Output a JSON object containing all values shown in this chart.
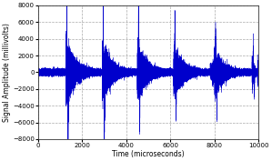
{
  "xlabel": "Time (microseconds)",
  "ylabel": "Signal Amplitude (millivolts)",
  "xlim": [
    0,
    10000
  ],
  "ylim": [
    -8000,
    8000
  ],
  "yticks": [
    -8000,
    -6000,
    -4000,
    -2000,
    0,
    2000,
    4000,
    6000,
    8000
  ],
  "xticks": [
    0,
    2000,
    4000,
    6000,
    8000,
    10000
  ],
  "line_color": "#0000cc",
  "background_color": "#ffffff",
  "grid_color": "#aaaaaa",
  "spike_times": [
    1300,
    2950,
    4550,
    6200,
    8050,
    9750
  ],
  "spike_pos_amps": [
    7200,
    6600,
    6500,
    5200,
    4100,
    3200
  ],
  "spike_neg_amps": [
    6400,
    7000,
    5500,
    3600,
    4100,
    2700
  ],
  "noise_envelope": [
    1600,
    1500,
    1400,
    1200,
    1100,
    900
  ],
  "inter_noise": [
    300,
    400,
    500,
    600,
    700,
    800
  ],
  "seed": 7,
  "n_points": 80000,
  "total_time": 10000
}
